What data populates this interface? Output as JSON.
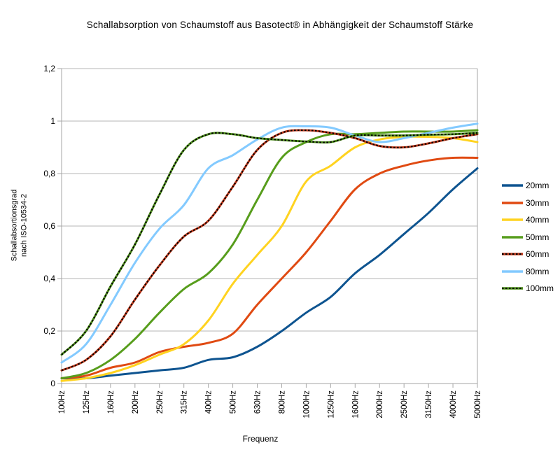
{
  "chart_data": {
    "type": "line",
    "title": "Schallabsorption von Schaumstoff aus Basotect® in Abhängigkeit der Schaumstoff Stärke",
    "xlabel": "Frequenz",
    "ylabel_line1": "Schallabsortionsgrad",
    "ylabel_line2": "nach ISO-10534-2",
    "categories": [
      "100Hz",
      "125Hz",
      "160Hz",
      "200Hz",
      "250Hz",
      "315Hz",
      "400Hz",
      "500Hz",
      "630Hz",
      "800Hz",
      "1000Hz",
      "1250Hz",
      "1600Hz",
      "2000Hz",
      "2500Hz",
      "3150Hz",
      "4000Hz",
      "5000Hz"
    ],
    "ylim": [
      0,
      1.2
    ],
    "y_ticks": [
      {
        "value": 0,
        "label": "0"
      },
      {
        "value": 0.2,
        "label": "0,2"
      },
      {
        "value": 0.4,
        "label": "0,4"
      },
      {
        "value": 0.6,
        "label": "0,6"
      },
      {
        "value": 0.8,
        "label": "0,8"
      },
      {
        "value": 1.0,
        "label": "1"
      },
      {
        "value": 1.2,
        "label": "1,2"
      }
    ],
    "grid": "horizontal-only",
    "legend_position": "right",
    "line_style": "smooth-spline",
    "series": [
      {
        "name": "20mm",
        "color": "#0E5490",
        "dotted_overlay": false,
        "values": [
          0.02,
          0.02,
          0.03,
          0.04,
          0.05,
          0.06,
          0.09,
          0.1,
          0.14,
          0.2,
          0.27,
          0.33,
          0.42,
          0.49,
          0.57,
          0.65,
          0.74,
          0.82
        ]
      },
      {
        "name": "30mm",
        "color": "#E04A12",
        "dotted_overlay": false,
        "values": [
          0.02,
          0.03,
          0.06,
          0.08,
          0.12,
          0.14,
          0.155,
          0.19,
          0.3,
          0.4,
          0.5,
          0.62,
          0.74,
          0.8,
          0.83,
          0.85,
          0.86,
          0.86
        ]
      },
      {
        "name": "40mm",
        "color": "#FFD320",
        "dotted_overlay": false,
        "values": [
          0.01,
          0.02,
          0.04,
          0.07,
          0.11,
          0.15,
          0.24,
          0.38,
          0.49,
          0.6,
          0.77,
          0.83,
          0.9,
          0.93,
          0.94,
          0.94,
          0.935,
          0.92
        ]
      },
      {
        "name": "50mm",
        "color": "#579D1C",
        "dotted_overlay": false,
        "values": [
          0.02,
          0.04,
          0.09,
          0.17,
          0.27,
          0.36,
          0.42,
          0.53,
          0.7,
          0.86,
          0.92,
          0.95,
          0.95,
          0.955,
          0.96,
          0.96,
          0.96,
          0.965
        ]
      },
      {
        "name": "60mm",
        "color": "#C0391B",
        "dotted_overlay": true,
        "overlay_color": "#000000",
        "values": [
          0.05,
          0.09,
          0.18,
          0.32,
          0.45,
          0.56,
          0.62,
          0.75,
          0.89,
          0.955,
          0.965,
          0.955,
          0.935,
          0.905,
          0.9,
          0.915,
          0.935,
          0.95
        ]
      },
      {
        "name": "80mm",
        "color": "#83CAFF",
        "dotted_overlay": false,
        "values": [
          0.08,
          0.15,
          0.3,
          0.46,
          0.59,
          0.68,
          0.82,
          0.87,
          0.93,
          0.975,
          0.98,
          0.975,
          0.945,
          0.92,
          0.935,
          0.955,
          0.975,
          0.99
        ]
      },
      {
        "name": "100mm",
        "color": "#4E8F1C",
        "dotted_overlay": true,
        "overlay_color": "#000000",
        "values": [
          0.11,
          0.2,
          0.37,
          0.53,
          0.72,
          0.89,
          0.95,
          0.95,
          0.935,
          0.928,
          0.922,
          0.92,
          0.945,
          0.945,
          0.945,
          0.948,
          0.95,
          0.955
        ]
      }
    ],
    "colors": {
      "background": "#FFFFFF",
      "gridline": "#B4B4B4",
      "axis": "#A6A6A6",
      "text": "#000000"
    }
  }
}
